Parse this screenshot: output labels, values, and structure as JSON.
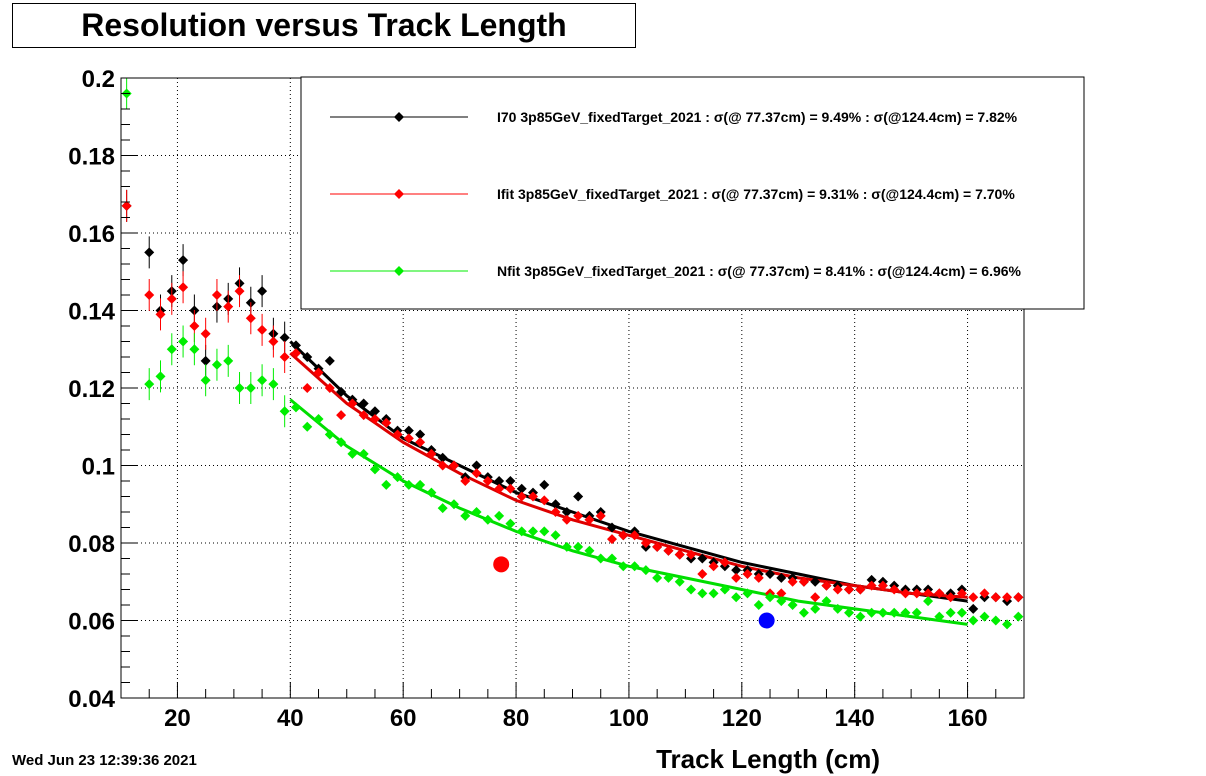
{
  "title": "Resolution versus Track Length",
  "timestamp": "Wed Jun 23 12:39:36 2021",
  "chart_data": {
    "type": "scatter",
    "title": "Resolution versus Track Length",
    "xlabel": "Track Length (cm)",
    "ylabel": "",
    "xlim": [
      10,
      170
    ],
    "ylim": [
      0.04,
      0.2
    ],
    "xticks": [
      20,
      40,
      60,
      80,
      100,
      120,
      140,
      160
    ],
    "yticks": [
      0.04,
      0.06,
      0.08,
      0.1,
      0.12,
      0.14,
      0.16,
      0.18,
      0.2
    ],
    "ytick_labels": [
      "0.04",
      "0.06",
      "0.08",
      "0.1",
      "0.12",
      "0.14",
      "0.16",
      "0.18",
      "0.2"
    ],
    "grid": true,
    "legend_position": "top-right",
    "series": [
      {
        "name": "I70  3p85GeV_fixedTarget_2021 : σ(@ 77.37cm) =  9.49% : σ(@124.4cm) =  7.82%",
        "color": "#000000",
        "x": [
          11,
          15,
          17,
          19,
          21,
          23,
          25,
          27,
          29,
          31,
          33,
          35,
          37,
          39,
          41,
          43,
          45,
          47,
          49,
          51,
          53,
          55,
          57,
          59,
          61,
          63,
          65,
          67,
          69,
          71,
          73,
          75,
          77,
          79,
          81,
          83,
          85,
          87,
          89,
          91,
          93,
          95,
          97,
          99,
          101,
          103,
          105,
          107,
          109,
          111,
          113,
          115,
          117,
          119,
          121,
          123,
          125,
          127,
          129,
          131,
          133,
          135,
          137,
          139,
          141,
          143,
          145,
          147,
          149,
          151,
          153,
          155,
          157,
          159,
          161,
          163,
          165,
          167,
          169
        ],
        "y": [
          0.167,
          0.155,
          0.14,
          0.145,
          0.153,
          0.14,
          0.127,
          0.141,
          0.143,
          0.147,
          0.142,
          0.145,
          0.134,
          0.133,
          0.131,
          0.128,
          0.125,
          0.127,
          0.119,
          0.117,
          0.116,
          0.114,
          0.112,
          0.109,
          0.109,
          0.108,
          0.104,
          0.102,
          0.1,
          0.097,
          0.1,
          0.097,
          0.096,
          0.096,
          0.094,
          0.093,
          0.095,
          0.09,
          0.088,
          0.092,
          0.087,
          0.088,
          0.084,
          0.082,
          0.083,
          0.079,
          0.079,
          0.078,
          0.077,
          0.076,
          0.076,
          0.075,
          0.074,
          0.073,
          0.073,
          0.072,
          0.072,
          0.071,
          0.071,
          0.07,
          0.07,
          0.069,
          0.069,
          0.068,
          0.068,
          0.0705,
          0.07,
          0.069,
          0.068,
          0.068,
          0.068,
          0.067,
          0.067,
          0.068,
          0.063,
          0.066,
          0.066,
          0.065,
          0.066
        ]
      },
      {
        "name": "Ifit 3p85GeV_fixedTarget_2021 : σ(@ 77.37cm) =  9.31% : σ(@124.4cm) =  7.70%",
        "color": "#ff0000",
        "x": [
          11,
          15,
          17,
          19,
          21,
          23,
          25,
          27,
          29,
          31,
          33,
          35,
          37,
          39,
          41,
          43,
          45,
          47,
          49,
          51,
          53,
          55,
          57,
          59,
          61,
          63,
          65,
          67,
          69,
          71,
          73,
          75,
          77,
          79,
          81,
          83,
          85,
          87,
          89,
          91,
          93,
          95,
          97,
          99,
          101,
          103,
          105,
          107,
          109,
          111,
          113,
          115,
          117,
          119,
          121,
          123,
          125,
          127,
          129,
          131,
          133,
          135,
          137,
          139,
          141,
          143,
          145,
          147,
          149,
          151,
          153,
          155,
          157,
          159,
          161,
          163,
          165,
          167,
          169
        ],
        "y": [
          0.167,
          0.144,
          0.139,
          0.143,
          0.146,
          0.136,
          0.134,
          0.144,
          0.141,
          0.145,
          0.138,
          0.135,
          0.132,
          0.128,
          0.129,
          0.12,
          0.124,
          0.12,
          0.113,
          0.116,
          0.113,
          0.112,
          0.111,
          0.108,
          0.107,
          0.106,
          0.103,
          0.1,
          0.1,
          0.096,
          0.098,
          0.096,
          0.094,
          0.094,
          0.092,
          0.092,
          0.091,
          0.088,
          0.086,
          0.087,
          0.086,
          0.087,
          0.081,
          0.082,
          0.082,
          0.08,
          0.079,
          0.078,
          0.077,
          0.077,
          0.072,
          0.074,
          0.075,
          0.071,
          0.072,
          0.071,
          0.067,
          0.067,
          0.07,
          0.07,
          0.066,
          0.069,
          0.068,
          0.068,
          0.068,
          0.069,
          0.069,
          0.068,
          0.067,
          0.067,
          0.067,
          0.067,
          0.066,
          0.067,
          0.066,
          0.067,
          0.066,
          0.066,
          0.066
        ]
      },
      {
        "name": "Nfit 3p85GeV_fixedTarget_2021 : σ(@ 77.37cm) =  8.41% : σ(@124.4cm) =  6.96%",
        "color": "#00ee00",
        "x": [
          11,
          15,
          17,
          19,
          21,
          23,
          25,
          27,
          29,
          31,
          33,
          35,
          37,
          39,
          41,
          43,
          45,
          47,
          49,
          51,
          53,
          55,
          57,
          59,
          61,
          63,
          65,
          67,
          69,
          71,
          73,
          75,
          77,
          79,
          81,
          83,
          85,
          87,
          89,
          91,
          93,
          95,
          97,
          99,
          101,
          103,
          105,
          107,
          109,
          111,
          113,
          115,
          117,
          119,
          121,
          123,
          125,
          127,
          129,
          131,
          133,
          135,
          137,
          139,
          141,
          143,
          145,
          147,
          149,
          151,
          153,
          155,
          157,
          159,
          161,
          163,
          165,
          167,
          169
        ],
        "y": [
          0.196,
          0.121,
          0.123,
          0.13,
          0.132,
          0.13,
          0.122,
          0.126,
          0.127,
          0.12,
          0.12,
          0.122,
          0.121,
          0.114,
          0.115,
          0.11,
          0.112,
          0.108,
          0.106,
          0.103,
          0.103,
          0.099,
          0.095,
          0.097,
          0.095,
          0.095,
          0.093,
          0.089,
          0.09,
          0.087,
          0.088,
          0.086,
          0.087,
          0.085,
          0.083,
          0.083,
          0.083,
          0.082,
          0.079,
          0.079,
          0.078,
          0.076,
          0.076,
          0.074,
          0.074,
          0.073,
          0.071,
          0.071,
          0.07,
          0.068,
          0.067,
          0.067,
          0.068,
          0.066,
          0.067,
          0.064,
          0.066,
          0.065,
          0.064,
          0.062,
          0.063,
          0.065,
          0.063,
          0.062,
          0.061,
          0.062,
          0.062,
          0.062,
          0.062,
          0.062,
          0.065,
          0.061,
          0.062,
          0.062,
          0.06,
          0.061,
          0.06,
          0.059,
          0.061
        ]
      }
    ],
    "fits": [
      {
        "series": 0,
        "color": "#000000",
        "x": [
          40,
          50,
          60,
          70,
          80,
          90,
          100,
          110,
          120,
          130,
          140,
          150,
          160
        ],
        "y": [
          0.132,
          0.118,
          0.107,
          0.1,
          0.093,
          0.088,
          0.083,
          0.079,
          0.075,
          0.072,
          0.069,
          0.067,
          0.065
        ]
      },
      {
        "series": 1,
        "color": "#dd0000",
        "x": [
          40,
          50,
          60,
          70,
          80,
          90,
          100,
          110,
          120,
          130,
          140,
          150,
          160
        ],
        "y": [
          0.129,
          0.116,
          0.106,
          0.098,
          0.091,
          0.086,
          0.082,
          0.078,
          0.074,
          0.071,
          0.069,
          0.067,
          0.066
        ]
      },
      {
        "series": 2,
        "color": "#00dd00",
        "x": [
          40,
          50,
          60,
          70,
          80,
          90,
          100,
          110,
          120,
          130,
          140,
          150,
          160
        ],
        "y": [
          0.117,
          0.105,
          0.096,
          0.089,
          0.083,
          0.078,
          0.074,
          0.071,
          0.068,
          0.065,
          0.063,
          0.061,
          0.059
        ]
      }
    ],
    "markers": [
      {
        "x": 77.37,
        "y": 0.0745,
        "color": "#ff0000"
      },
      {
        "x": 124.4,
        "y": 0.06,
        "color": "#0000ff"
      }
    ]
  }
}
